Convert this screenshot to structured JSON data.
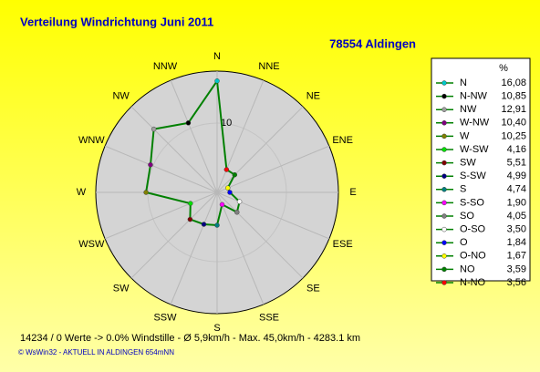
{
  "chart_data": {
    "type": "radar",
    "title": "Verteilung Windrichtung   Juni 2011",
    "subtitle": "78554 Aldingen",
    "categories": [
      "N",
      "NNE",
      "NE",
      "ENE",
      "E",
      "ESE",
      "SE",
      "SSE",
      "S",
      "SSW",
      "SW",
      "WSW",
      "W",
      "WNW",
      "NW",
      "NNW"
    ],
    "rlim": [
      0,
      17.5
    ],
    "rticks": [
      10
    ],
    "line_color": "#008000",
    "legend_header": "%",
    "points": [
      {
        "name": "N",
        "direction": "N",
        "value": 16.08,
        "value_label": "16,08",
        "color": "#00c8c8"
      },
      {
        "name": "N-NW",
        "direction": "NNW",
        "value": 10.85,
        "value_label": "10,85",
        "color": "#000000"
      },
      {
        "name": "NW",
        "direction": "NW",
        "value": 12.91,
        "value_label": "12,91",
        "color": "#a0a0a0"
      },
      {
        "name": "W-NW",
        "direction": "WNW",
        "value": 10.4,
        "value_label": "10,40",
        "color": "#800080"
      },
      {
        "name": "W",
        "direction": "W",
        "value": 10.25,
        "value_label": "10,25",
        "color": "#808000"
      },
      {
        "name": "W-SW",
        "direction": "WSW",
        "value": 4.16,
        "value_label": "4,16",
        "color": "#00e000"
      },
      {
        "name": "SW",
        "direction": "SW",
        "value": 5.51,
        "value_label": "5,51",
        "color": "#800000"
      },
      {
        "name": "S-SW",
        "direction": "SSW",
        "value": 4.99,
        "value_label": "4,99",
        "color": "#000080"
      },
      {
        "name": "S",
        "direction": "S",
        "value": 4.74,
        "value_label": "4,74",
        "color": "#008080"
      },
      {
        "name": "S-SO",
        "direction": "SSE",
        "value": 1.9,
        "value_label": "1,90",
        "color": "#ff00ff"
      },
      {
        "name": "SO",
        "direction": "SE",
        "value": 4.05,
        "value_label": "4,05",
        "color": "#808080"
      },
      {
        "name": "O-SO",
        "direction": "ESE",
        "value": 3.5,
        "value_label": "3,50",
        "color": "#ffffff"
      },
      {
        "name": "O",
        "direction": "E",
        "value": 1.84,
        "value_label": "1,84",
        "color": "#0000ff"
      },
      {
        "name": "O-NO",
        "direction": "ENE",
        "value": 1.67,
        "value_label": "1,67",
        "color": "#ffff00"
      },
      {
        "name": "NO",
        "direction": "NE",
        "value": 3.59,
        "value_label": "3,59",
        "color": "#008000"
      },
      {
        "name": "N-NO",
        "direction": "NNE",
        "value": 3.56,
        "value_label": "3,56",
        "color": "#ff0000"
      }
    ],
    "footer": "14234 / 0 Werte  -> 0.0% Windstille   -   Ø 5,9km/h   -   Max. 45,0km/h   -   4283.1 km",
    "credit": "© WsWin32  -  AKTUELL IN ALDINGEN 654mNN"
  }
}
